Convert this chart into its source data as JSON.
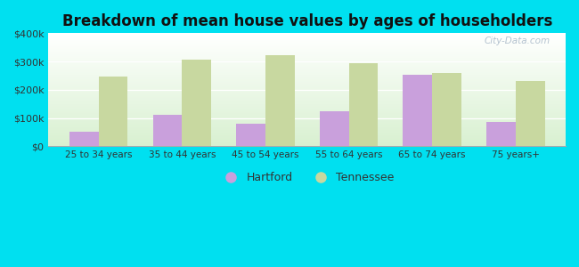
{
  "title": "Breakdown of mean house values by ages of householders",
  "categories": [
    "25 to 34 years",
    "35 to 44 years",
    "45 to 54 years",
    "55 to 64 years",
    "65 to 74 years",
    "75 years+"
  ],
  "hartford": [
    50000,
    110000,
    80000,
    125000,
    252000,
    87000
  ],
  "tennessee": [
    248000,
    305000,
    322000,
    295000,
    260000,
    232000
  ],
  "hartford_color": "#c9a0dc",
  "tennessee_color": "#c8d8a0",
  "background_color": "#00e0f0",
  "ylim": [
    0,
    400000
  ],
  "yticks": [
    0,
    100000,
    200000,
    300000,
    400000
  ],
  "ytick_labels": [
    "$0",
    "$100k",
    "$200k",
    "$300k",
    "$400k"
  ],
  "title_fontsize": 12,
  "watermark": "City-Data.com",
  "legend_labels": [
    "Hartford",
    "Tennessee"
  ]
}
